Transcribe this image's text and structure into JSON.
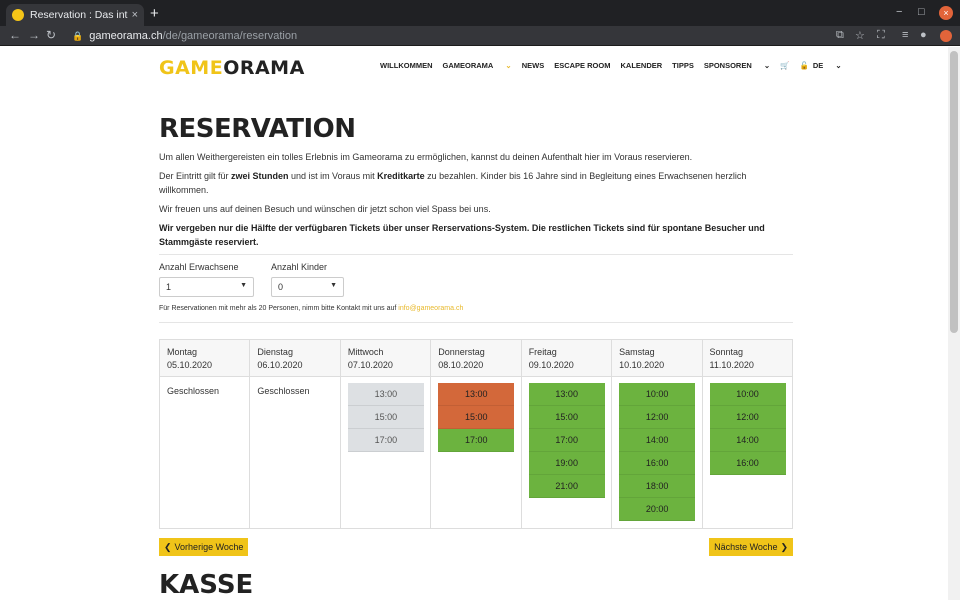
{
  "browser": {
    "tab_title": "Reservation : Das interakt",
    "tab_close": "×",
    "new_tab": "+",
    "url_host": "gameorama.ch",
    "url_path": "/de/gameorama/reservation",
    "win_min": "−",
    "win_max": "□",
    "win_close": "×"
  },
  "header": {
    "logo_part1": "GAME",
    "logo_part2": "ORAMA",
    "nav": [
      {
        "label": "WILLKOMMEN",
        "active": false
      },
      {
        "label": "GAMEORAMA",
        "active": true
      },
      {
        "label": "NEWS",
        "active": false
      },
      {
        "label": "ESCAPE ROOM",
        "active": false
      },
      {
        "label": "KALENDER",
        "active": false
      },
      {
        "label": "TIPPS",
        "active": false
      },
      {
        "label": "SPONSOREN",
        "active": false
      }
    ],
    "language": "DE"
  },
  "main": {
    "title": "RESERVATION",
    "p1": "Um allen Weithergereisten ein tolles Erlebnis im Gameorama zu ermöglichen, kannst du deinen Aufenthalt hier im Voraus reservieren.",
    "p2_a": "Der Eintritt gilt für ",
    "p2_b": "zwei Stunden",
    "p2_c": " und ist im Voraus mit ",
    "p2_d": "Kreditkarte",
    "p2_e": " zu bezahlen. Kinder bis 16 Jahre sind in Begleitung eines Erwachsenen herzlich willkommen.",
    "p3": "Wir freuen uns auf deinen Besuch und wünschen dir jetzt schon viel Spass bei uns.",
    "p4": "Wir vergeben nur die Hälfte der verfügbaren Tickets über unser Rerservations-System. Die restlichen Tickets sind für spontane Besucher und Stammgäste reserviert.",
    "adults_label": "Anzahl Erwachsene",
    "adults_value": "1",
    "kids_label": "Anzahl Kinder",
    "kids_value": "0",
    "note": "Für Reservationen mit mehr als 20 Personen, nimm bitte Kontakt mit uns auf ",
    "note_mail": "info@gameorama.ch",
    "prev_week": "Vorherige Woche",
    "next_week": "Nächste Woche",
    "kasse": "KASSE"
  },
  "calendar": [
    {
      "day": "Montag",
      "date": "05.10.2020",
      "closed": "Geschlossen",
      "slots": []
    },
    {
      "day": "Dienstag",
      "date": "06.10.2020",
      "closed": "Geschlossen",
      "slots": []
    },
    {
      "day": "Mittwoch",
      "date": "07.10.2020",
      "slots": [
        {
          "time": "13:00",
          "status": "disabled"
        },
        {
          "time": "15:00",
          "status": "disabled"
        },
        {
          "time": "17:00",
          "status": "disabled"
        }
      ]
    },
    {
      "day": "Donnerstag",
      "date": "08.10.2020",
      "slots": [
        {
          "time": "13:00",
          "status": "full"
        },
        {
          "time": "15:00",
          "status": "full"
        },
        {
          "time": "17:00",
          "status": "free"
        }
      ]
    },
    {
      "day": "Freitag",
      "date": "09.10.2020",
      "slots": [
        {
          "time": "13:00",
          "status": "free"
        },
        {
          "time": "15:00",
          "status": "free"
        },
        {
          "time": "17:00",
          "status": "free"
        },
        {
          "time": "19:00",
          "status": "free"
        },
        {
          "time": "21:00",
          "status": "free"
        }
      ]
    },
    {
      "day": "Samstag",
      "date": "10.10.2020",
      "slots": [
        {
          "time": "10:00",
          "status": "free"
        },
        {
          "time": "12:00",
          "status": "free"
        },
        {
          "time": "14:00",
          "status": "free"
        },
        {
          "time": "16:00",
          "status": "free"
        },
        {
          "time": "18:00",
          "status": "free"
        },
        {
          "time": "20:00",
          "status": "free"
        }
      ]
    },
    {
      "day": "Sonntag",
      "date": "11.10.2020",
      "slots": [
        {
          "time": "10:00",
          "status": "free"
        },
        {
          "time": "12:00",
          "status": "free"
        },
        {
          "time": "14:00",
          "status": "free"
        },
        {
          "time": "16:00",
          "status": "free"
        }
      ]
    }
  ],
  "colors": {
    "accent": "#f0c419",
    "full": "#d3683a",
    "free": "#6cb33f",
    "disabled": "#dde0e3"
  }
}
